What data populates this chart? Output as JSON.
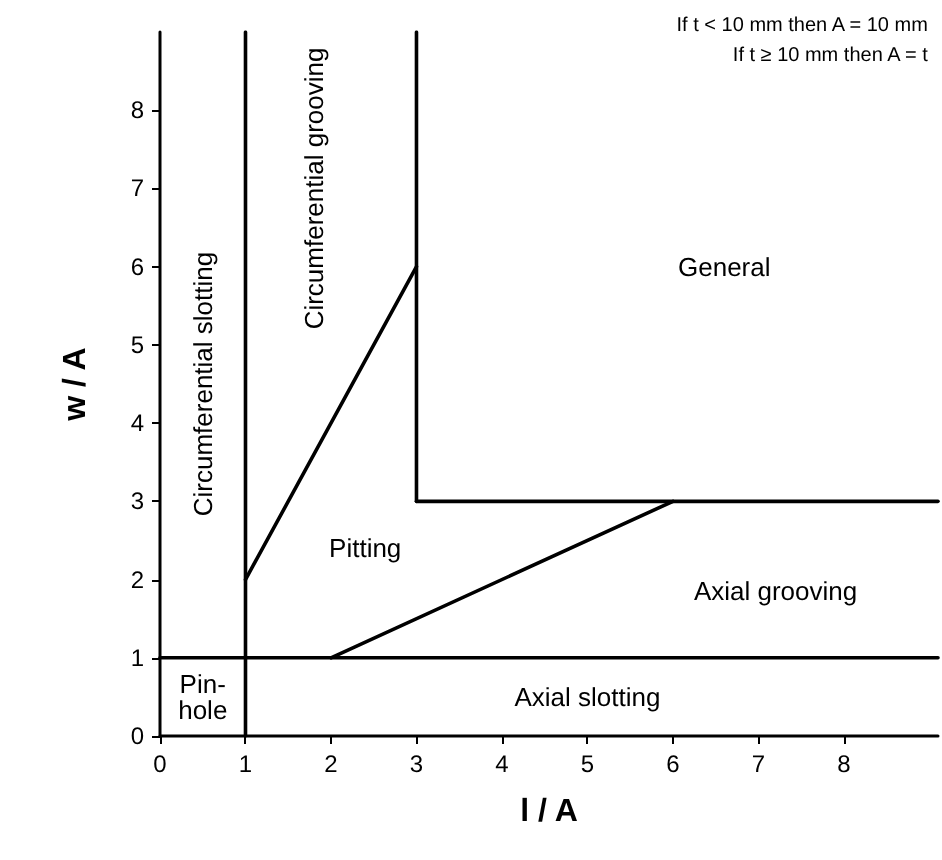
{
  "chart_data": {
    "type": "line",
    "xlabel": "l / A",
    "ylabel": "w / A",
    "xlim": [
      0,
      9.1
    ],
    "ylim": [
      0,
      9
    ],
    "xticks": [
      0,
      1,
      2,
      3,
      4,
      5,
      6,
      7,
      8
    ],
    "yticks": [
      0,
      1,
      2,
      3,
      4,
      5,
      6,
      7,
      8
    ],
    "grid": false,
    "marker": "none",
    "line_style": "solid",
    "series": [
      {
        "color": "#000000",
        "x": [
          0,
          9.1
        ],
        "values": [
          1,
          1
        ]
      },
      {
        "color": "#000000",
        "x": [
          1,
          1
        ],
        "values": [
          0,
          9
        ]
      },
      {
        "color": "#000000",
        "x": [
          1,
          3
        ],
        "values": [
          2,
          6
        ]
      },
      {
        "color": "#000000",
        "x": [
          3,
          3
        ],
        "values": [
          3,
          9
        ]
      },
      {
        "color": "#000000",
        "x": [
          3,
          9.1
        ],
        "values": [
          3,
          3
        ]
      },
      {
        "color": "#000000",
        "x": [
          2,
          6
        ],
        "values": [
          1,
          3
        ]
      }
    ],
    "annotations": [
      "If t < 10 mm then A = 10 mm",
      "If t ≥ 10 mm then A = t",
      "Circumferential slotting",
      "Circumferential grooving",
      "General",
      "Pitting",
      "Axial grooving",
      "Axial slotting",
      "Pin-\nhole"
    ]
  }
}
